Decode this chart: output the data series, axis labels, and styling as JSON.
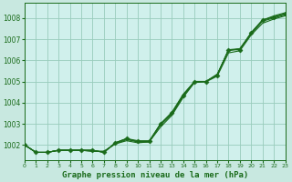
{
  "title": "Graphe pression niveau de la mer (hPa)",
  "background_color": "#c8e8e0",
  "plot_bg_color": "#d0f0ec",
  "grid_color": "#99ccbb",
  "line_color": "#1a6b1a",
  "xlim": [
    0,
    23
  ],
  "ylim": [
    1001.3,
    1008.7
  ],
  "yticks": [
    1002,
    1003,
    1004,
    1005,
    1006,
    1007,
    1008
  ],
  "xticks": [
    0,
    1,
    2,
    3,
    4,
    5,
    6,
    7,
    8,
    9,
    10,
    11,
    12,
    13,
    14,
    15,
    16,
    17,
    18,
    19,
    20,
    21,
    22,
    23
  ],
  "series": [
    [
      1002.0,
      1001.65,
      1001.65,
      1001.75,
      1001.75,
      1001.75,
      1001.75,
      1001.65,
      1002.1,
      1002.3,
      1002.15,
      1002.15,
      1003.0,
      1003.5,
      1004.35,
      1005.0,
      1005.0,
      1005.3,
      1006.5,
      1006.5,
      1007.3,
      1007.9,
      1008.05,
      1008.2
    ],
    [
      1002.0,
      1001.65,
      1001.65,
      1001.75,
      1001.75,
      1001.75,
      1001.7,
      1001.7,
      1002.05,
      1002.2,
      1002.1,
      1002.15,
      1002.85,
      1003.4,
      1004.25,
      1004.95,
      1004.98,
      1005.25,
      1006.35,
      1006.45,
      1007.2,
      1007.75,
      1007.95,
      1008.1
    ],
    [
      1002.0,
      1001.65,
      1001.65,
      1001.75,
      1001.75,
      1001.75,
      1001.7,
      1001.7,
      1002.05,
      1002.25,
      1002.15,
      1002.15,
      1002.95,
      1003.45,
      1004.3,
      1005.0,
      1005.0,
      1005.35,
      1006.45,
      1006.55,
      1007.25,
      1007.85,
      1008.0,
      1008.15
    ],
    [
      1002.0,
      1001.65,
      1001.65,
      1001.75,
      1001.75,
      1001.75,
      1001.75,
      1001.65,
      1002.1,
      1002.3,
      1002.15,
      1002.15,
      1003.0,
      1003.55,
      1004.4,
      1005.0,
      1005.0,
      1005.3,
      1006.5,
      1006.55,
      1007.3,
      1007.9,
      1008.1,
      1008.25
    ]
  ],
  "marker_series": [
    [
      1002.0,
      1001.65,
      1001.65,
      1001.75,
      1001.75,
      1001.75,
      1001.75,
      1001.65,
      1002.1,
      1002.3,
      1002.2,
      1002.2,
      1003.0,
      1003.5,
      1004.35,
      1005.0,
      1005.0,
      1005.3,
      1006.5,
      1006.5,
      1007.3,
      1007.9,
      1008.05,
      1008.2
    ]
  ],
  "marker": "D",
  "marker_size": 2.5
}
